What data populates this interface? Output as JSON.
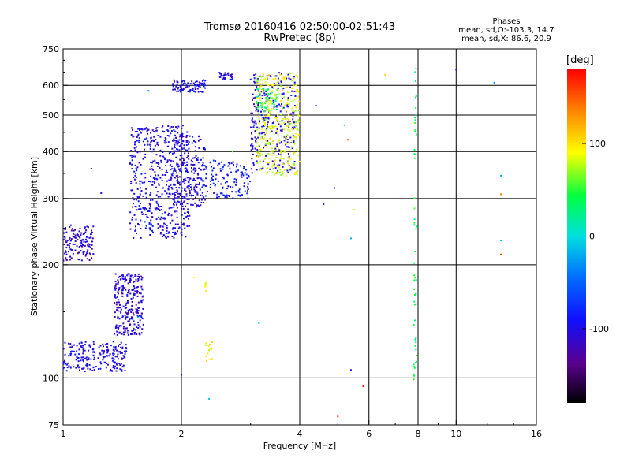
{
  "header": {
    "title_line1": "Tromsø 20160416 02:50:00-02:51:43",
    "title_line2": "RwPretec (8p)"
  },
  "stats": {
    "heading": "Phases",
    "line_o": "mean, sd,O:-103.3, 14.7",
    "line_x": "mean, sd,X:  86.6, 20.9"
  },
  "colorbar": {
    "unit": "[deg]",
    "range": [
      -180,
      180
    ],
    "ticks": [
      100,
      0,
      -100
    ],
    "tick_labels": [
      "100",
      "0",
      "-100"
    ]
  },
  "chart_data": {
    "type": "scatter",
    "xlabel": "Frequency [MHz]",
    "ylabel": "Stationary phase Virtual Height [km]",
    "x_scale": "log",
    "y_scale": "log",
    "xlim": [
      1,
      16
    ],
    "ylim": [
      75,
      750
    ],
    "grid": true,
    "x_ticks": [
      1,
      2,
      4,
      6,
      8,
      10,
      16
    ],
    "x_tick_labels": [
      "1",
      "2",
      "4",
      "6",
      "8",
      "10",
      "16"
    ],
    "y_ticks": [
      75,
      100,
      200,
      300,
      400,
      500,
      600,
      750
    ],
    "y_tick_labels": [
      "75",
      "100",
      "200",
      "300",
      "400",
      "500",
      "600",
      "750"
    ],
    "vertical_grid_lines": [
      2,
      4,
      6,
      8,
      10
    ],
    "horizontal_grid_lines": [
      100,
      200,
      300,
      400,
      500,
      600
    ],
    "scatter_groups": [
      {
        "x": [
          1.0,
          1.45
        ],
        "y": [
          104,
          125
        ],
        "phase": -100,
        "count": 220
      },
      {
        "x": [
          1.0,
          1.2
        ],
        "y": [
          205,
          255
        ],
        "phase": -110,
        "count": 130
      },
      {
        "x": [
          1.35,
          1.6
        ],
        "y": [
          130,
          190
        ],
        "phase": -105,
        "count": 260
      },
      {
        "x": [
          1.48,
          2.1
        ],
        "y": [
          235,
          470
        ],
        "phase": -100,
        "count": 520
      },
      {
        "x": [
          1.9,
          2.3
        ],
        "y": [
          285,
          440
        ],
        "phase": -105,
        "count": 200
      },
      {
        "x": [
          1.9,
          2.3
        ],
        "y": [
          575,
          620
        ],
        "phase": -100,
        "count": 90
      },
      {
        "x": [
          2.25,
          3.0
        ],
        "y": [
          300,
          380
        ],
        "phase": -85,
        "count": 130
      },
      {
        "x": [
          2.5,
          2.7
        ],
        "y": [
          620,
          650
        ],
        "phase": -105,
        "count": 35
      },
      {
        "x": [
          3.0,
          3.9
        ],
        "y": [
          350,
          650
        ],
        "phase": -105,
        "count": 260
      },
      {
        "x": [
          3.1,
          3.5
        ],
        "y": [
          510,
          590
        ],
        "phase": 35,
        "count": 50
      },
      {
        "x": [
          3.1,
          4.0
        ],
        "y": [
          345,
          650
        ],
        "phase": 85,
        "count": 330
      },
      {
        "x": [
          2.3,
          2.4
        ],
        "y": [
          110,
          125
        ],
        "phase": 90,
        "count": 14
      },
      {
        "x": [
          2.3,
          2.35
        ],
        "y": [
          170,
          180
        ],
        "phase": 85,
        "count": 6
      },
      {
        "x": [
          7.8,
          7.95
        ],
        "y": [
          95,
          680
        ],
        "phase": 40,
        "count": 55
      }
    ],
    "scatter_points": [
      {
        "x": 5.5,
        "y": 280,
        "phase": 80
      },
      {
        "x": 5.4,
        "y": 235,
        "phase": -20
      },
      {
        "x": 5.3,
        "y": 430,
        "phase": 150
      },
      {
        "x": 5.4,
        "y": 105,
        "phase": -100
      },
      {
        "x": 5.0,
        "y": 79,
        "phase": 160
      },
      {
        "x": 5.8,
        "y": 95,
        "phase": 170
      },
      {
        "x": 6.6,
        "y": 640,
        "phase": 110
      },
      {
        "x": 10.0,
        "y": 660,
        "phase": -120
      },
      {
        "x": 12.5,
        "y": 610,
        "phase": -30
      },
      {
        "x": 13.0,
        "y": 345,
        "phase": -20
      },
      {
        "x": 13.0,
        "y": 308,
        "phase": 140
      },
      {
        "x": 13.0,
        "y": 232,
        "phase": -10
      },
      {
        "x": 13.0,
        "y": 213,
        "phase": 160
      },
      {
        "x": 4.9,
        "y": 320,
        "phase": -110
      },
      {
        "x": 4.6,
        "y": 290,
        "phase": -110
      },
      {
        "x": 4.4,
        "y": 530,
        "phase": -110
      },
      {
        "x": 5.2,
        "y": 470,
        "phase": -10
      },
      {
        "x": 2.35,
        "y": 88,
        "phase": -10
      },
      {
        "x": 2.0,
        "y": 102,
        "phase": -120
      },
      {
        "x": 3.15,
        "y": 140,
        "phase": -10
      },
      {
        "x": 1.55,
        "y": 145,
        "phase": -10
      },
      {
        "x": 1.25,
        "y": 310,
        "phase": -110
      },
      {
        "x": 1.18,
        "y": 360,
        "phase": -105
      },
      {
        "x": 1.65,
        "y": 580,
        "phase": -40
      },
      {
        "x": 2.15,
        "y": 185,
        "phase": 90
      },
      {
        "x": 2.7,
        "y": 400,
        "phase": 60
      }
    ]
  }
}
